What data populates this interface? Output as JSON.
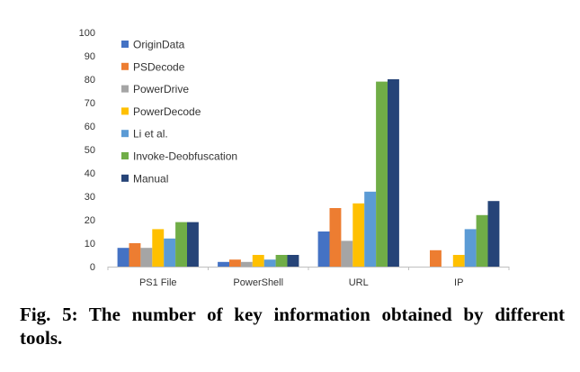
{
  "caption": "Fig. 5: The number of key information obtained by different tools.",
  "chart_data": {
    "type": "bar",
    "categories": [
      "PS1 File",
      "PowerShell",
      "URL",
      "IP"
    ],
    "ylim": [
      0,
      100
    ],
    "yticks": [
      0,
      10,
      20,
      30,
      40,
      50,
      60,
      70,
      80,
      90,
      100
    ],
    "grid": false,
    "legend_position": "top-left",
    "series": [
      {
        "name": "OriginData",
        "color": "#4472C4",
        "values": [
          8,
          2,
          15,
          0
        ]
      },
      {
        "name": "PSDecode",
        "color": "#ED7D31",
        "values": [
          10,
          3,
          25,
          7
        ]
      },
      {
        "name": "PowerDrive",
        "color": "#A5A5A5",
        "values": [
          8,
          2,
          11,
          0
        ]
      },
      {
        "name": "PowerDecode",
        "color": "#FFC000",
        "values": [
          16,
          5,
          27,
          5
        ]
      },
      {
        "name": "Li et al.",
        "color": "#5B9BD5",
        "values": [
          12,
          3,
          32,
          16
        ]
      },
      {
        "name": "Invoke-Deobfuscation",
        "color": "#70AD47",
        "values": [
          19,
          5,
          79,
          22
        ]
      },
      {
        "name": "Manual",
        "color": "#264478",
        "values": [
          19,
          5,
          80,
          28
        ]
      }
    ]
  }
}
